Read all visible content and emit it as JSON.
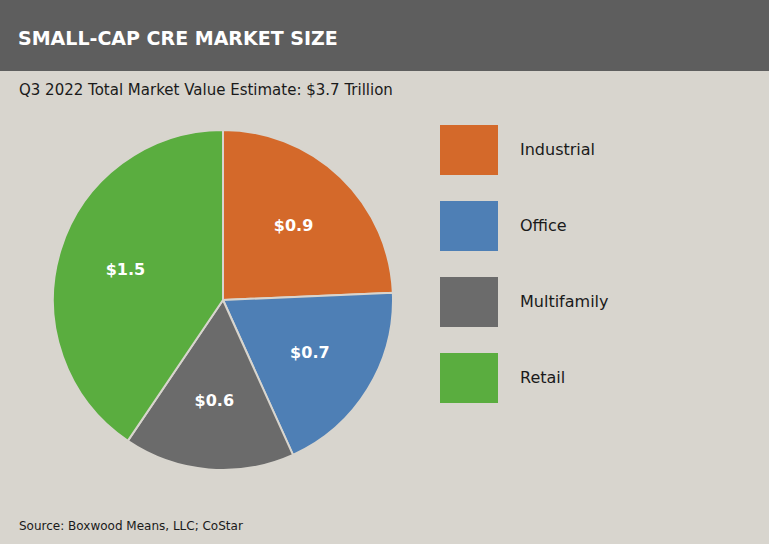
{
  "chart_data": {
    "type": "pie",
    "title": "SMALL-CAP CRE MARKET SIZE",
    "subtitle": "Q3 2022 Total Market Value Estimate: $3.7 Trillion",
    "source": "Source: Boxwood Means, LLC; CoStar",
    "categories": [
      "Industrial",
      "Office",
      "Multifamily",
      "Retail"
    ],
    "values": [
      0.9,
      0.7,
      0.6,
      1.5
    ],
    "value_labels": [
      "$0.9",
      "$0.7",
      "$0.6",
      "$1.5"
    ],
    "colors": [
      "#d4692a",
      "#4e7fb5",
      "#6b6b6b",
      "#5aad3f"
    ],
    "data_labels": true,
    "legend": "right"
  }
}
